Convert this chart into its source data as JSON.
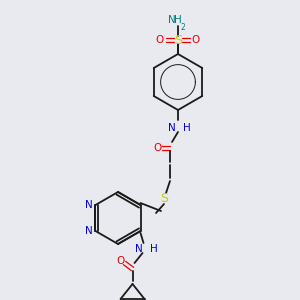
{
  "background_color": "#e8eaf0",
  "figsize": [
    3.0,
    3.0
  ],
  "dpi": 100,
  "bond_color": "#1a1a1a",
  "bond_lw": 1.3,
  "colors": {
    "N": "#0000dd",
    "O": "#ee0000",
    "S": "#cccc00",
    "NH2": "#008080",
    "H": "#0000dd",
    "C": "#1a1a1a"
  }
}
